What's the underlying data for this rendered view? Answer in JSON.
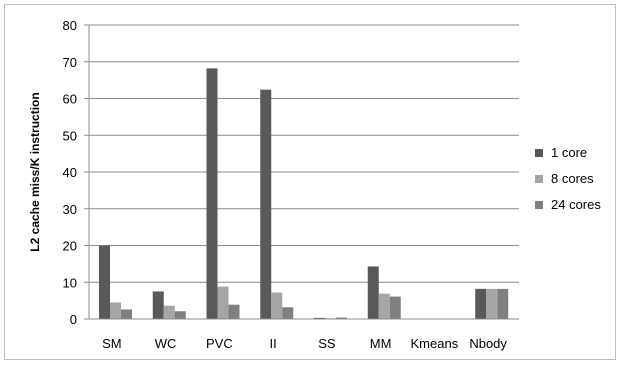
{
  "chart_data": {
    "type": "bar",
    "title": "",
    "xlabel": "",
    "ylabel": "L2 cache miss/K instruction",
    "ylim": [
      0,
      80
    ],
    "yticks": [
      0,
      10,
      20,
      30,
      40,
      50,
      60,
      70,
      80
    ],
    "grid": true,
    "legend_position": "right",
    "categories": [
      "SM",
      "WC",
      "PVC",
      "II",
      "SS",
      "MM",
      "Kmeans",
      "Nbody"
    ],
    "series": [
      {
        "name": "1 core",
        "color": "#595959",
        "values": [
          20,
          7.5,
          68.2,
          62.4,
          0.3,
          14.3,
          0,
          8.2
        ]
      },
      {
        "name": "8 cores",
        "color": "#a6a6a6",
        "values": [
          4.5,
          3.6,
          8.8,
          7.2,
          0.2,
          6.9,
          0,
          8.2
        ]
      },
      {
        "name": "24 cores",
        "color": "#7f7f7f",
        "values": [
          2.6,
          2.1,
          3.9,
          3.2,
          0.4,
          6.1,
          0,
          8.2
        ]
      }
    ]
  }
}
